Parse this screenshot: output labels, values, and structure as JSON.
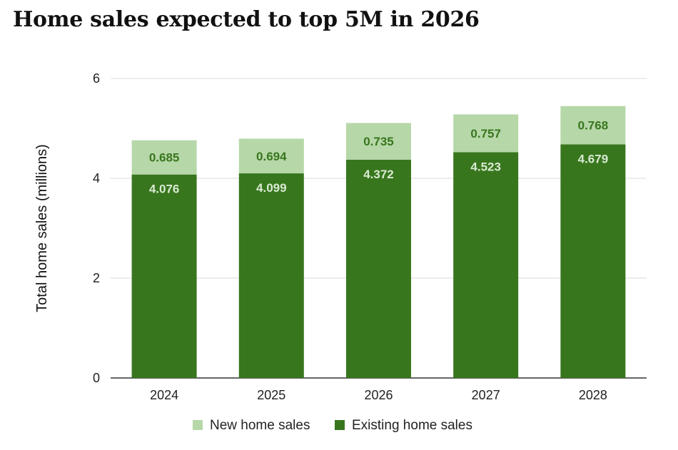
{
  "title": "Home sales expected to top 5M in 2026",
  "colors": {
    "new": "#b6d7a8",
    "existing": "#38761d",
    "new_label": "#38761d",
    "existing_label": "#d9ead3",
    "grid": "#d9d9d9",
    "axis": "#333333"
  },
  "chart_data": {
    "type": "bar",
    "stacked": true,
    "categories": [
      "2024",
      "2025",
      "2026",
      "2027",
      "2028"
    ],
    "series": [
      {
        "name": "Existing home sales",
        "values": [
          4.076,
          4.099,
          4.372,
          4.523,
          4.679
        ],
        "labels": [
          "4.076",
          "4.099",
          "4.372",
          "4.523",
          "4.679"
        ]
      },
      {
        "name": "New home sales",
        "values": [
          0.685,
          0.694,
          0.735,
          0.757,
          0.768
        ],
        "labels": [
          "0.685",
          "0.694",
          "0.735",
          "0.757",
          "0.768"
        ]
      }
    ],
    "ylabel": "Total home sales (millions)",
    "xlabel": "",
    "ylim": [
      0,
      6
    ],
    "yticks": [
      "0",
      "2",
      "4",
      "6"
    ],
    "grid": true,
    "legend_position": "bottom",
    "legend": [
      "New home sales",
      "Existing home sales"
    ]
  }
}
